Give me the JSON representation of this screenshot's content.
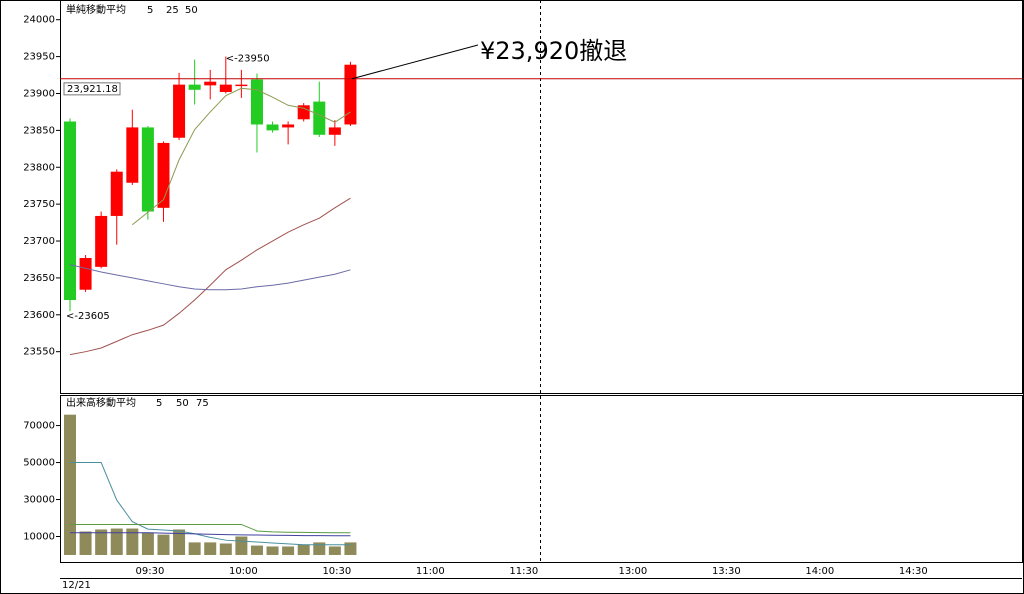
{
  "chart_data": [
    {
      "type": "candlestick",
      "title": "単純移動平均",
      "open": [
        23862,
        23634,
        23665,
        23734,
        23779,
        23854,
        23745,
        23840,
        23912,
        23911,
        23902,
        23910,
        23919,
        23858,
        23854,
        23865,
        23889,
        23844,
        23858,
        null,
        null,
        null,
        null,
        null,
        null,
        null,
        null,
        null,
        null,
        null,
        null,
        null,
        null,
        null,
        null,
        null,
        null,
        null,
        null,
        null,
        null,
        null,
        null,
        null,
        null,
        null,
        null,
        null,
        null,
        null,
        null,
        null,
        null,
        null,
        null
      ],
      "high": [
        23866,
        23681,
        23740,
        23797,
        23878,
        23856,
        23835,
        23928,
        23946,
        23932,
        23950,
        23932,
        23927,
        23862,
        23862,
        23887,
        23916,
        23864,
        23943,
        null,
        null,
        null,
        null,
        null,
        null,
        null,
        null,
        null,
        null,
        null,
        null,
        null,
        null,
        null,
        null,
        null,
        null,
        null,
        null,
        null,
        null,
        null,
        null,
        null,
        null,
        null,
        null,
        null,
        null,
        null,
        null,
        null,
        null,
        null,
        null
      ],
      "low": [
        23605,
        23631,
        23663,
        23695,
        23776,
        23729,
        23726,
        23837,
        23885,
        23892,
        23900,
        23894,
        23820,
        23847,
        23831,
        23862,
        23841,
        23829,
        23856,
        null,
        null,
        null,
        null,
        null,
        null,
        null,
        null,
        null,
        null,
        null,
        null,
        null,
        null,
        null,
        null,
        null,
        null,
        null,
        null,
        null,
        null,
        null,
        null,
        null,
        null,
        null,
        null,
        null,
        null,
        null,
        null,
        null,
        null,
        null,
        null
      ],
      "close": [
        23620,
        23677,
        23734,
        23794,
        23854,
        23740,
        23833,
        23912,
        23905,
        23916,
        23912,
        23912,
        23858,
        23850,
        23858,
        23884,
        23844,
        23854,
        23939,
        null,
        null,
        null,
        null,
        null,
        null,
        null,
        null,
        null,
        null,
        null,
        null,
        null,
        null,
        null,
        null,
        null,
        null,
        null,
        null,
        null,
        null,
        null,
        null,
        null,
        null,
        null,
        null,
        null,
        null,
        null,
        null,
        null,
        null,
        null,
        null
      ],
      "up_color": "#ff0000",
      "down_color": "#22cc22",
      "series": [
        {
          "name": "5",
          "color": "#8c9a50",
          "values": [
            null,
            null,
            null,
            null,
            23722,
            23739,
            23756,
            23810,
            23851,
            23875,
            23897,
            23907,
            23905,
            23895,
            23884,
            23880,
            23871,
            23861,
            23875,
            null,
            null,
            null,
            null,
            null,
            null,
            null,
            null,
            null,
            null,
            null,
            null,
            null,
            null,
            null,
            null,
            null,
            null,
            null,
            null,
            null,
            null,
            null,
            null,
            null,
            null,
            null,
            null,
            null,
            null,
            null,
            null,
            null,
            null,
            null,
            null
          ]
        },
        {
          "name": "25",
          "color": "#a0524f",
          "values": [
            23546,
            23550,
            23555,
            23564,
            23573,
            23579,
            23586,
            23602,
            23620,
            23640,
            23661,
            23674,
            23688,
            23700,
            23712,
            23722,
            23731,
            23745,
            23758,
            null,
            null,
            null,
            null,
            null,
            null,
            null,
            null,
            null,
            null,
            null,
            null,
            null,
            null,
            null,
            null,
            null,
            null,
            null,
            null,
            null,
            null,
            null,
            null,
            null,
            null,
            null,
            null,
            null,
            null,
            null,
            null,
            null,
            null,
            null,
            null
          ]
        },
        {
          "name": "50",
          "color": "#6a6aa8",
          "values": [
            23668,
            23663,
            23658,
            23654,
            23650,
            23646,
            23642,
            23638,
            23635,
            23634,
            23634,
            23635,
            23638,
            23640,
            23643,
            23647,
            23651,
            23655,
            23661,
            null,
            null,
            null,
            null,
            null,
            null,
            null,
            null,
            null,
            null,
            null,
            null,
            null,
            null,
            null,
            null,
            null,
            null,
            null,
            null,
            null,
            null,
            null,
            null,
            null,
            null,
            null,
            null,
            null,
            null,
            null,
            null,
            null,
            null,
            null,
            null
          ]
        }
      ],
      "ylim": [
        23494,
        24024
      ],
      "yticks": [
        23550,
        23600,
        23650,
        23700,
        23750,
        23800,
        23850,
        23900,
        23950,
        24000
      ],
      "hline": {
        "value": 23920,
        "label": "¥23,920撤退",
        "color": "#c00000"
      },
      "price_label": {
        "value": 23921.18,
        "label": "23,921.18"
      },
      "high_note": {
        "value": 23950,
        "label": "<-23950"
      },
      "low_note": {
        "value": 23605,
        "label": "<-23605"
      }
    },
    {
      "type": "bar",
      "title": "出来高移動平均",
      "color": "#8f8a5a",
      "date": "12/21",
      "categories": [
        null,
        null,
        null,
        null,
        null,
        "09:30",
        null,
        null,
        null,
        null,
        null,
        "10:00",
        null,
        null,
        null,
        null,
        null,
        "10:30",
        null,
        null,
        null,
        null,
        null,
        "11:00",
        null,
        null,
        null,
        null,
        null,
        "11:30",
        null,
        null,
        null,
        null,
        null,
        null,
        "13:00",
        null,
        null,
        null,
        null,
        null,
        "13:30",
        null,
        null,
        null,
        null,
        null,
        "14:00",
        null,
        null,
        null,
        null,
        null,
        "14:30"
      ],
      "values": [
        75900,
        12700,
        13800,
        14300,
        14300,
        12200,
        11000,
        13800,
        6800,
        6800,
        6200,
        10000,
        5100,
        4600,
        4600,
        5700,
        6800,
        4600,
        6800,
        null,
        null,
        null,
        null,
        null,
        null,
        null,
        null,
        null,
        null,
        null,
        null,
        null,
        null,
        null,
        null,
        null,
        null,
        null,
        null,
        null,
        null,
        null,
        null,
        null,
        null,
        null,
        null,
        null,
        null,
        null,
        null,
        null,
        null,
        null,
        null
      ],
      "series": [
        {
          "name": "5",
          "color": "#4a8fa0",
          "values": [
            50000,
            50000,
            50000,
            29700,
            18000,
            14000,
            13500,
            13000,
            11500,
            9500,
            8000,
            7500,
            7000,
            6500,
            6000,
            5500,
            5500,
            5500,
            5500,
            null,
            null,
            null,
            null,
            null,
            null,
            null,
            null,
            null,
            null,
            null,
            null,
            null,
            null,
            null,
            null,
            null,
            null,
            null,
            null,
            null,
            null,
            null,
            null,
            null,
            null,
            null,
            null,
            null,
            null,
            null,
            null,
            null,
            null,
            null,
            null
          ]
        },
        {
          "name": "50",
          "color": "#4040a0",
          "values": [
            12000,
            12000,
            12000,
            12000,
            12000,
            12000,
            11800,
            11600,
            11400,
            11200,
            11000,
            10900,
            10800,
            10700,
            10600,
            10500,
            10500,
            10400,
            10400,
            null,
            null,
            null,
            null,
            null,
            null,
            null,
            null,
            null,
            null,
            null,
            null,
            null,
            null,
            null,
            null,
            null,
            null,
            null,
            null,
            null,
            null,
            null,
            null,
            null,
            null,
            null,
            null,
            null,
            null,
            null,
            null,
            null,
            null,
            null,
            null
          ]
        },
        {
          "name": "75",
          "color": "#5a9a40",
          "values": [
            16500,
            16500,
            16500,
            16500,
            16500,
            16500,
            16500,
            16500,
            16500,
            16500,
            16500,
            16500,
            13000,
            12500,
            12300,
            12200,
            12100,
            12000,
            12000,
            null,
            null,
            null,
            null,
            null,
            null,
            null,
            null,
            null,
            null,
            null,
            null,
            null,
            null,
            null,
            null,
            null,
            null,
            null,
            null,
            null,
            null,
            null,
            null,
            null,
            null,
            null,
            null,
            null,
            null,
            null,
            null,
            null,
            null,
            null,
            null
          ]
        }
      ],
      "ylim": [
        -3800,
        86000
      ],
      "yticks": [
        10000,
        30000,
        50000,
        70000
      ]
    }
  ]
}
